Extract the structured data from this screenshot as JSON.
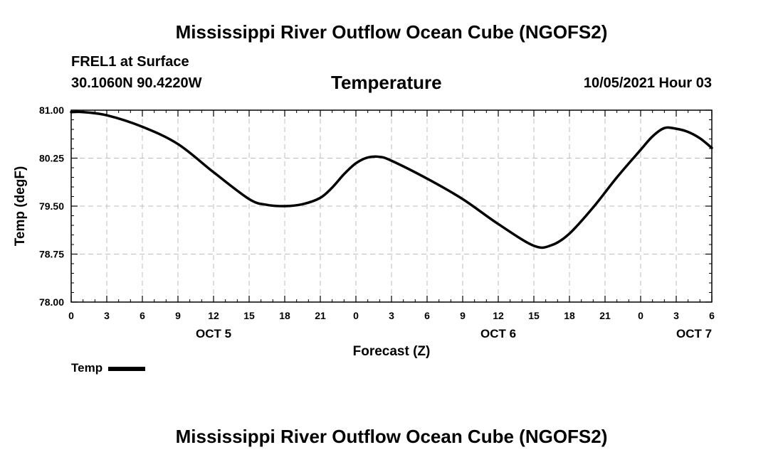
{
  "header": {
    "main_title": "Mississippi River Outflow Ocean Cube (NGOFS2)",
    "station": "FREL1 at Surface",
    "coords": "30.1060N  90.4220W",
    "variable": "Temperature",
    "datetime": "10/05/2021 Hour 03"
  },
  "footer": {
    "title": "Mississippi River Outflow Ocean Cube (NGOFS2)"
  },
  "chart_data": {
    "type": "line",
    "title": "Temperature",
    "xlabel": "Forecast (Z)",
    "ylabel": "Temp (degF)",
    "xlim": [
      0,
      54
    ],
    "ylim": [
      78.0,
      81.0
    ],
    "grid": true,
    "y_ticks": [
      "78.00",
      "78.75",
      "79.50",
      "80.25",
      "81.00"
    ],
    "x_ticks": [
      "0",
      "3",
      "6",
      "9",
      "12",
      "15",
      "18",
      "21",
      "0",
      "3",
      "6",
      "9",
      "12",
      "15",
      "18",
      "21",
      "0",
      "3",
      "6"
    ],
    "day_labels": [
      {
        "label": "OCT 5",
        "at": 12
      },
      {
        "label": "OCT 6",
        "at": 36
      },
      {
        "label": "OCT 7",
        "at": 52.5
      }
    ],
    "legend": [
      {
        "name": "Temp",
        "color": "#000000",
        "position": "bottom-left"
      }
    ],
    "series": [
      {
        "name": "Temp",
        "x": [
          0,
          1,
          3,
          6,
          9,
          12,
          15,
          16.5,
          18,
          19.5,
          21,
          22,
          23,
          24,
          25,
          26,
          27,
          30,
          33,
          36,
          39,
          40.5,
          42,
          44,
          46,
          48,
          49,
          50,
          51,
          52,
          53,
          54
        ],
        "y": [
          80.97,
          80.97,
          80.92,
          80.74,
          80.47,
          80.03,
          79.61,
          79.52,
          79.5,
          79.53,
          79.63,
          79.79,
          80.0,
          80.17,
          80.26,
          80.27,
          80.21,
          79.93,
          79.61,
          79.22,
          78.88,
          78.89,
          79.07,
          79.48,
          79.95,
          80.38,
          80.59,
          80.72,
          80.71,
          80.66,
          80.56,
          80.41
        ]
      }
    ]
  }
}
